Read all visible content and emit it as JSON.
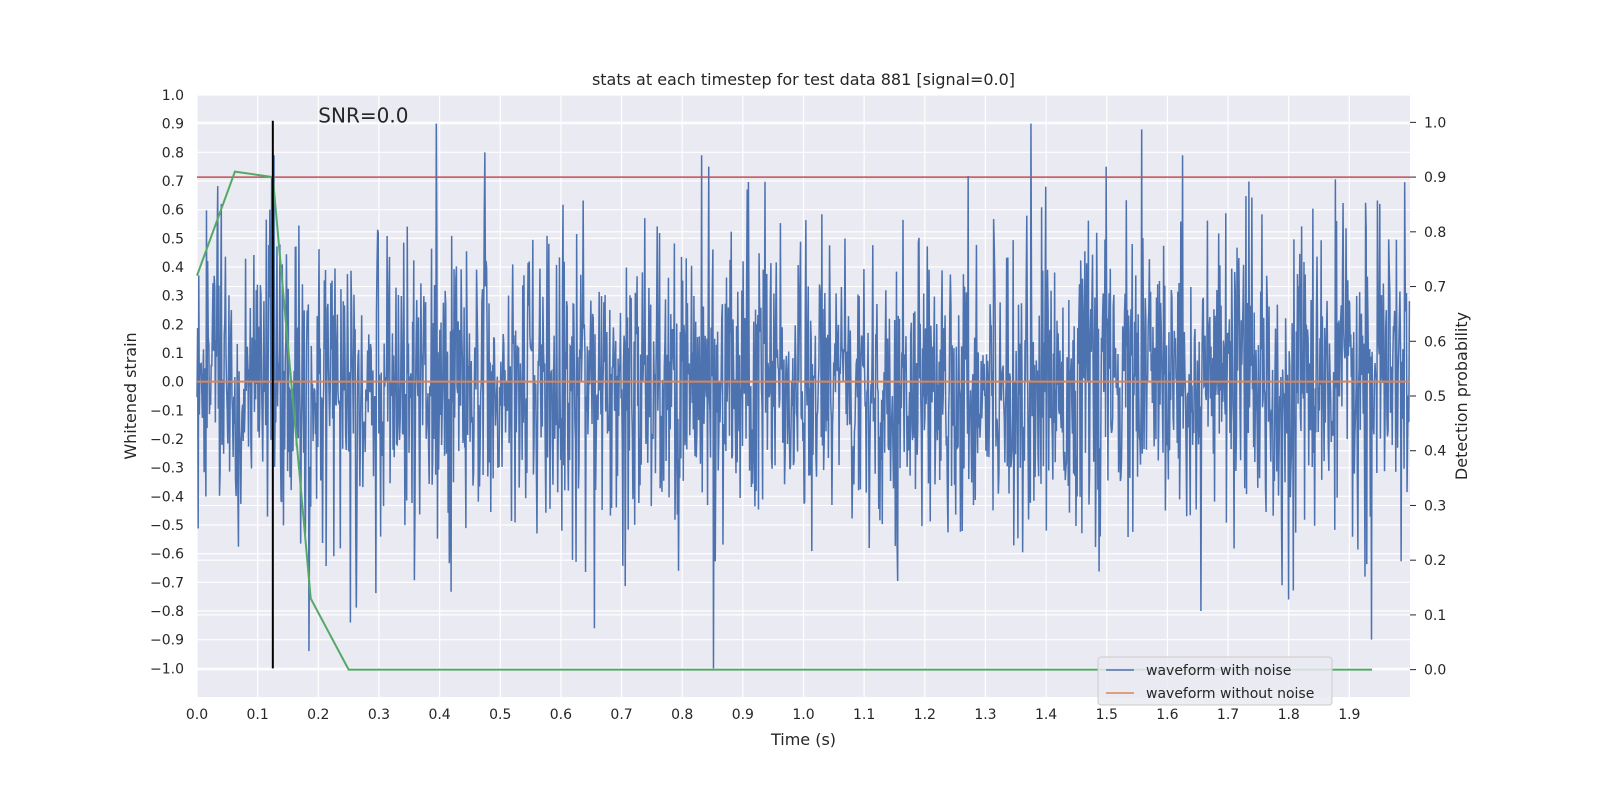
{
  "chart_data": {
    "type": "line",
    "title": "stats at each timestep for test data 881 [signal=0.0]",
    "xlabel": "Time (s)",
    "ylabel": "Whitened strain",
    "y2label": "Detection probability",
    "xlim": [
      0.0,
      2.0
    ],
    "ylim": [
      -1.1,
      1.0
    ],
    "y2lim": [
      -0.05,
      1.05
    ],
    "xticks": [
      "0.0",
      "0.1",
      "0.2",
      "0.3",
      "0.4",
      "0.5",
      "0.6",
      "0.7",
      "0.8",
      "0.9",
      "1.0",
      "1.1",
      "1.2",
      "1.3",
      "1.4",
      "1.5",
      "1.6",
      "1.7",
      "1.8",
      "1.9"
    ],
    "yticks": [
      "1.0",
      "0.9",
      "0.8",
      "0.7",
      "0.6",
      "0.5",
      "0.4",
      "0.3",
      "0.2",
      "0.1",
      "0.0",
      "−0.1",
      "−0.2",
      "−0.3",
      "−0.4",
      "−0.5",
      "−0.6",
      "−0.7",
      "−0.8",
      "−0.9",
      "−1.0"
    ],
    "y2ticks": [
      "1.0",
      "0.9",
      "0.8",
      "0.7",
      "0.6",
      "0.5",
      "0.4",
      "0.3",
      "0.2",
      "0.1",
      "0.0"
    ],
    "grid": true,
    "legend_position": "lower-right",
    "annotation": {
      "text": "SNR=0.0",
      "x": 0.2,
      "y": 0.9
    },
    "series": [
      {
        "name": "waveform with noise",
        "color": "#4c72b0",
        "kind": "noise",
        "samples": 2048,
        "amplitude_std": 0.25,
        "min": -1.0,
        "max": 0.9,
        "peaks": [
          [
            0.033,
            0.5
          ],
          [
            0.04,
            0.62
          ],
          [
            0.12,
            0.6
          ],
          [
            0.127,
            0.79
          ],
          [
            0.185,
            -0.94
          ],
          [
            0.253,
            -0.84
          ],
          [
            0.395,
            0.9
          ],
          [
            0.475,
            0.8
          ],
          [
            0.655,
            -0.86
          ],
          [
            0.832,
            0.79
          ],
          [
            0.852,
            -1.0
          ],
          [
            1.375,
            0.9
          ],
          [
            1.558,
            0.88
          ],
          [
            1.625,
            0.79
          ],
          [
            1.655,
            -0.8
          ],
          [
            1.8,
            -0.76
          ],
          [
            1.937,
            -0.9
          ],
          [
            1.95,
            0.62
          ]
        ]
      },
      {
        "name": "waveform without noise",
        "color": "#dd8452",
        "x": [
          0.0,
          2.0
        ],
        "y": [
          0.0,
          0.0
        ]
      }
    ],
    "probability_series": {
      "color": "#55a868",
      "x": [
        0.0,
        0.0625,
        0.125,
        0.1875,
        0.25,
        0.3125,
        1.9375
      ],
      "y": [
        0.72,
        0.91,
        0.9,
        0.13,
        0.0,
        0.0,
        0.0
      ]
    },
    "threshold_line": {
      "color": "#c44e52",
      "y2": 0.9
    },
    "marker_line": {
      "color": "#000000",
      "x": 0.125,
      "y_from": -1.0,
      "y_to": 0.91
    }
  }
}
